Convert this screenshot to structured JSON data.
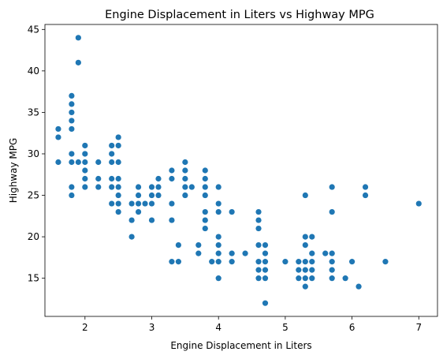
{
  "chart_data": {
    "type": "scatter",
    "title": "Engine Displacement in Liters vs Highway MPG",
    "xlabel": "Engine Displacement in Liters",
    "ylabel": "Highway MPG",
    "xlim": [
      1.4,
      7.28
    ],
    "ylim": [
      10.4,
      45.6
    ],
    "xticks": [
      2,
      3,
      4,
      5,
      6,
      7
    ],
    "yticks": [
      15,
      20,
      25,
      30,
      35,
      40,
      45
    ],
    "grid": false,
    "legend": "none",
    "marker_color": "#1f77b4",
    "points": [
      [
        1.6,
        33
      ],
      [
        1.6,
        32
      ],
      [
        1.6,
        29
      ],
      [
        1.8,
        37
      ],
      [
        1.8,
        36
      ],
      [
        1.8,
        35
      ],
      [
        1.8,
        34
      ],
      [
        1.8,
        33
      ],
      [
        1.8,
        30
      ],
      [
        1.8,
        29
      ],
      [
        1.8,
        26
      ],
      [
        1.8,
        25
      ],
      [
        1.9,
        44
      ],
      [
        1.9,
        41
      ],
      [
        1.9,
        29
      ],
      [
        2.0,
        31
      ],
      [
        2.0,
        30
      ],
      [
        2.0,
        29
      ],
      [
        2.0,
        28
      ],
      [
        2.0,
        27
      ],
      [
        2.0,
        26
      ],
      [
        2.2,
        29
      ],
      [
        2.2,
        27
      ],
      [
        2.2,
        26
      ],
      [
        2.4,
        31
      ],
      [
        2.4,
        30
      ],
      [
        2.4,
        29
      ],
      [
        2.4,
        27
      ],
      [
        2.4,
        26
      ],
      [
        2.4,
        24
      ],
      [
        2.5,
        32
      ],
      [
        2.5,
        31
      ],
      [
        2.5,
        29
      ],
      [
        2.5,
        27
      ],
      [
        2.5,
        26
      ],
      [
        2.5,
        25
      ],
      [
        2.5,
        24
      ],
      [
        2.5,
        23
      ],
      [
        2.7,
        24
      ],
      [
        2.7,
        22
      ],
      [
        2.7,
        20
      ],
      [
        2.8,
        26
      ],
      [
        2.8,
        25
      ],
      [
        2.8,
        24
      ],
      [
        2.8,
        23
      ],
      [
        2.9,
        24
      ],
      [
        3.0,
        26
      ],
      [
        3.0,
        25
      ],
      [
        3.0,
        24
      ],
      [
        3.0,
        22
      ],
      [
        3.1,
        27
      ],
      [
        3.1,
        26
      ],
      [
        3.1,
        25
      ],
      [
        3.3,
        28
      ],
      [
        3.3,
        27
      ],
      [
        3.3,
        24
      ],
      [
        3.3,
        22
      ],
      [
        3.3,
        17
      ],
      [
        3.4,
        19
      ],
      [
        3.4,
        17
      ],
      [
        3.5,
        29
      ],
      [
        3.5,
        28
      ],
      [
        3.5,
        27
      ],
      [
        3.5,
        26
      ],
      [
        3.5,
        25
      ],
      [
        3.6,
        26
      ],
      [
        3.7,
        19
      ],
      [
        3.7,
        18
      ],
      [
        3.8,
        28
      ],
      [
        3.8,
        27
      ],
      [
        3.8,
        26
      ],
      [
        3.8,
        25
      ],
      [
        3.8,
        23
      ],
      [
        3.8,
        22
      ],
      [
        3.8,
        21
      ],
      [
        3.9,
        17
      ],
      [
        4.0,
        26
      ],
      [
        4.0,
        24
      ],
      [
        4.0,
        23
      ],
      [
        4.0,
        20
      ],
      [
        4.0,
        19
      ],
      [
        4.0,
        18
      ],
      [
        4.0,
        17
      ],
      [
        4.0,
        15
      ],
      [
        4.2,
        23
      ],
      [
        4.2,
        18
      ],
      [
        4.2,
        17
      ],
      [
        4.4,
        18
      ],
      [
        4.6,
        23
      ],
      [
        4.6,
        22
      ],
      [
        4.6,
        21
      ],
      [
        4.6,
        19
      ],
      [
        4.6,
        17
      ],
      [
        4.6,
        16
      ],
      [
        4.6,
        15
      ],
      [
        4.7,
        19
      ],
      [
        4.7,
        18
      ],
      [
        4.7,
        17
      ],
      [
        4.7,
        16
      ],
      [
        4.7,
        15
      ],
      [
        4.7,
        12
      ],
      [
        5.0,
        17
      ],
      [
        5.2,
        17
      ],
      [
        5.2,
        16
      ],
      [
        5.2,
        15
      ],
      [
        5.3,
        25
      ],
      [
        5.3,
        20
      ],
      [
        5.3,
        19
      ],
      [
        5.3,
        17
      ],
      [
        5.3,
        16
      ],
      [
        5.3,
        15
      ],
      [
        5.3,
        14
      ],
      [
        5.4,
        20
      ],
      [
        5.4,
        18
      ],
      [
        5.4,
        17
      ],
      [
        5.4,
        16
      ],
      [
        5.4,
        15
      ],
      [
        5.6,
        18
      ],
      [
        5.7,
        26
      ],
      [
        5.7,
        23
      ],
      [
        5.7,
        18
      ],
      [
        5.7,
        17
      ],
      [
        5.7,
        16
      ],
      [
        5.7,
        15
      ],
      [
        5.9,
        15
      ],
      [
        6.0,
        17
      ],
      [
        6.1,
        14
      ],
      [
        6.2,
        26
      ],
      [
        6.2,
        25
      ],
      [
        6.5,
        17
      ],
      [
        7.0,
        24
      ]
    ]
  }
}
